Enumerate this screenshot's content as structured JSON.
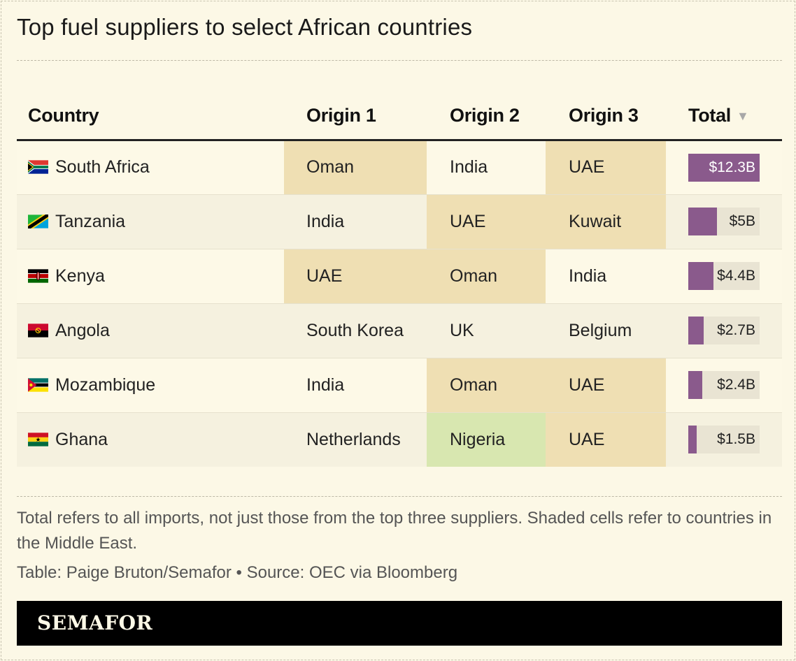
{
  "title": "Top fuel suppliers to select African countries",
  "colors": {
    "middle_east_shade": "#efdfb3",
    "africa_shade": "#d8e7b0",
    "bar": "#8a5a8c",
    "bar_track": "#e9e4d3"
  },
  "headers": {
    "country": "Country",
    "origin1": "Origin 1",
    "origin2": "Origin 2",
    "origin3": "Origin 3",
    "total": "Total",
    "sort_icon": "▼"
  },
  "chart_data": {
    "type": "table",
    "columns": [
      "Country",
      "Origin 1",
      "Origin 2",
      "Origin 3",
      "Total"
    ],
    "rows": [
      {
        "country": "South Africa",
        "flag": "south-africa-flag-icon",
        "origin1": "Oman",
        "origin2": "India",
        "origin3": "UAE",
        "total_label": "$12.3B",
        "total_value": 12.3,
        "shade": [
          "me",
          "",
          "me"
        ]
      },
      {
        "country": "Tanzania",
        "flag": "tanzania-flag-icon",
        "origin1": "India",
        "origin2": "UAE",
        "origin3": "Kuwait",
        "total_label": "$5B",
        "total_value": 5,
        "shade": [
          "",
          "me",
          "me"
        ]
      },
      {
        "country": "Kenya",
        "flag": "kenya-flag-icon",
        "origin1": "UAE",
        "origin2": "Oman",
        "origin3": "India",
        "total_label": "$4.4B",
        "total_value": 4.4,
        "shade": [
          "me",
          "me",
          ""
        ]
      },
      {
        "country": "Angola",
        "flag": "angola-flag-icon",
        "origin1": "South Korea",
        "origin2": "UK",
        "origin3": "Belgium",
        "total_label": "$2.7B",
        "total_value": 2.7,
        "shade": [
          "",
          "",
          ""
        ]
      },
      {
        "country": "Mozambique",
        "flag": "mozambique-flag-icon",
        "origin1": "India",
        "origin2": "Oman",
        "origin3": "UAE",
        "total_label": "$2.4B",
        "total_value": 2.4,
        "shade": [
          "",
          "me",
          "me"
        ]
      },
      {
        "country": "Ghana",
        "flag": "ghana-flag-icon",
        "origin1": "Netherlands",
        "origin2": "Nigeria",
        "origin3": "UAE",
        "total_label": "$1.5B",
        "total_value": 1.5,
        "shade": [
          "",
          "green",
          "me"
        ]
      }
    ],
    "total_max": 12.3
  },
  "note": "Total refers to all imports, not just those from the top three suppliers. Shaded cells refer to countries in the Middle East.",
  "source": "Table: Paige Bruton/Semafor • Source: OEC via Bloomberg",
  "footer": {
    "logo": "SEMAFOR"
  }
}
